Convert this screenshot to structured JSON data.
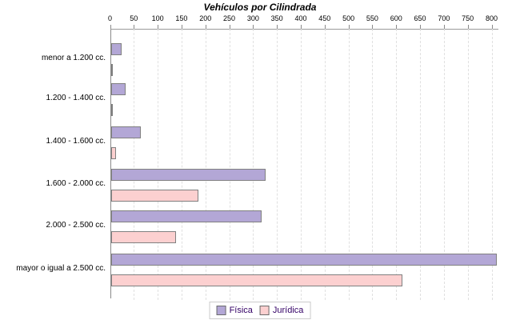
{
  "title": "Vehículos por Cilindrada",
  "chart_data": {
    "type": "bar",
    "orientation": "horizontal",
    "title": "Vehículos por Cilindrada",
    "categories": [
      "menor a 1.200 cc.",
      "1.200 - 1.400 cc.",
      "1.400 - 1.600 cc.",
      "1.600 - 2.000 cc.",
      "2.000 - 2.500 cc.",
      "mayor o igual a 2.500 cc."
    ],
    "series": [
      {
        "name": "Física",
        "color": "#b3a7d6",
        "border": "#808080",
        "values": [
          20,
          28,
          60,
          322,
          312,
          806
        ]
      },
      {
        "name": "Jurídica",
        "color": "#fcd0d0",
        "border": "#808080",
        "values": [
          1,
          1,
          8,
          180,
          134,
          608
        ]
      }
    ],
    "xlim": [
      0,
      800
    ],
    "xtick_step": 50,
    "xtick_labels": [
      "0",
      "50",
      "100",
      "150",
      "200",
      "250",
      "300",
      "350",
      "400",
      "450",
      "500",
      "550",
      "600",
      "650",
      "700",
      "750",
      "800"
    ],
    "grid": "vertical-dashed",
    "legend_position": "bottom-center"
  },
  "colors": {
    "grid": "#e0e0e0",
    "axis": "#8a8a8a",
    "title_text": "#000000",
    "legend_text": "#330066",
    "legend_border": "#cccccc",
    "fisica_fill": "#b3a7d6",
    "juridica_fill": "#fcd0d0",
    "bar_border": "#808080"
  }
}
